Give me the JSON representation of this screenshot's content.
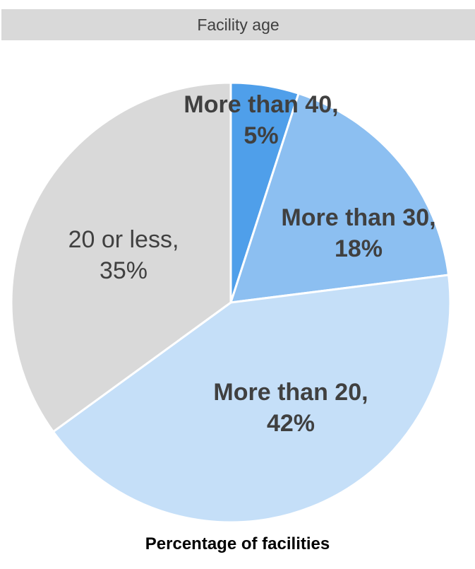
{
  "chart_data": {
    "type": "pie",
    "title": "Facility age",
    "caption": "Percentage of facilities",
    "start": "12 o'clock",
    "direction": "clockwise",
    "slices": [
      {
        "label": "More than 40,",
        "percent_text": "5%",
        "value": 5,
        "color": "#4f9fea",
        "label_bold": true
      },
      {
        "label": "More than 30,",
        "percent_text": "18%",
        "value": 18,
        "color": "#8cbff1",
        "label_bold": true
      },
      {
        "label": "More than 20,",
        "percent_text": "42%",
        "value": 42,
        "color": "#c5dff8",
        "label_bold": true
      },
      {
        "label": "20 or less,",
        "percent_text": "35%",
        "value": 35,
        "color": "#d9d9d9",
        "label_bold": false
      }
    ]
  }
}
